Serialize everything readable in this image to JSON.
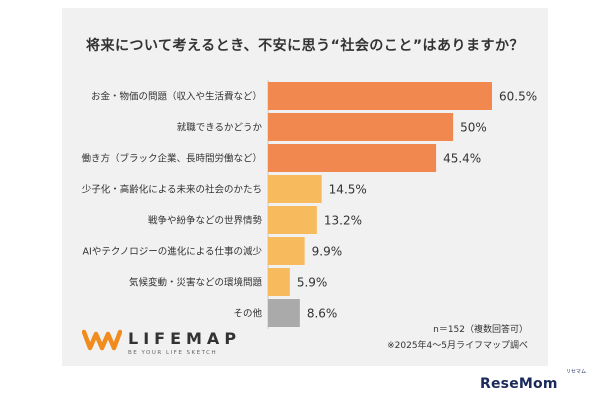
{
  "chart_data": {
    "type": "bar",
    "orientation": "horizontal",
    "title": "将来について考えるとき、不安に思う“社会のこと”はありますか？",
    "categories": [
      "お金・物価の問題（収入や生活費など）",
      "就職できるかどうか",
      "働き方（ブラック企業、長時間労働など）",
      "少子化・高齢化による未来の社会のかたち",
      "戦争や紛争などの世界情勢",
      "AIやテクノロジーの進化による仕事の減少",
      "気候変動・災害などの環境問題",
      "その他"
    ],
    "values": [
      60.5,
      50,
      45.4,
      14.5,
      13.2,
      9.9,
      5.9,
      8.6
    ],
    "value_labels": [
      "60.5%",
      "50%",
      "45.4%",
      "14.5%",
      "13.2%",
      "9.9%",
      "5.9%",
      "8.6%"
    ],
    "bar_colors": [
      "#f0884f",
      "#f0884f",
      "#f0884f",
      "#f7bb5e",
      "#f7bb5e",
      "#f7bb5e",
      "#f7bb5e",
      "#aaaaaa"
    ],
    "xlim": [
      0,
      60.5
    ],
    "grid": false,
    "legend": "none"
  },
  "notes": {
    "sample": "n＝152（複数回答可）",
    "source": "※2025年4〜5月ライフマップ調べ"
  },
  "logo": {
    "name": "LIFEMAP",
    "tagline": "BE YOUR LIFE SKETCH",
    "color": "#f08c1e"
  },
  "watermark": {
    "text": "ReseMom",
    "ruby": "リセマム"
  }
}
